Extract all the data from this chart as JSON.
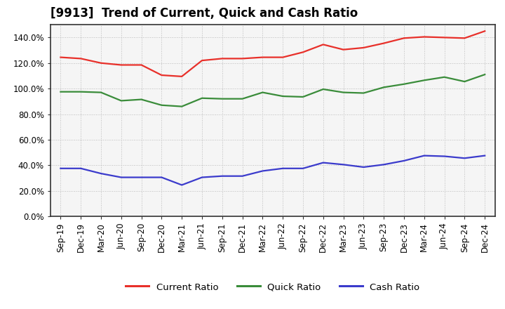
{
  "title": "[9913]  Trend of Current, Quick and Cash Ratio",
  "x_labels": [
    "Sep-19",
    "Dec-19",
    "Mar-20",
    "Jun-20",
    "Sep-20",
    "Dec-20",
    "Mar-21",
    "Jun-21",
    "Sep-21",
    "Dec-21",
    "Mar-22",
    "Jun-22",
    "Sep-22",
    "Dec-22",
    "Mar-23",
    "Jun-23",
    "Sep-23",
    "Dec-23",
    "Mar-24",
    "Jun-24",
    "Sep-24",
    "Dec-24"
  ],
  "current_ratio": [
    124.5,
    123.5,
    120.0,
    118.5,
    118.5,
    110.5,
    109.5,
    122.0,
    123.5,
    123.5,
    124.5,
    124.5,
    128.5,
    134.5,
    130.5,
    132.0,
    135.5,
    139.5,
    140.5,
    140.0,
    139.5,
    145.0
  ],
  "quick_ratio": [
    97.5,
    97.5,
    97.0,
    90.5,
    91.5,
    87.0,
    86.0,
    92.5,
    92.0,
    92.0,
    97.0,
    94.0,
    93.5,
    99.5,
    97.0,
    96.5,
    101.0,
    103.5,
    106.5,
    109.0,
    105.5,
    111.0
  ],
  "cash_ratio": [
    37.5,
    37.5,
    33.5,
    30.5,
    30.5,
    30.5,
    24.5,
    30.5,
    31.5,
    31.5,
    35.5,
    37.5,
    37.5,
    42.0,
    40.5,
    38.5,
    40.5,
    43.5,
    47.5,
    47.0,
    45.5,
    47.5
  ],
  "current_color": "#e8302a",
  "quick_color": "#3a8c3a",
  "cash_color": "#3b3bcc",
  "ylim": [
    0,
    150
  ],
  "yticks": [
    0,
    20,
    40,
    60,
    80,
    100,
    120,
    140
  ],
  "plot_bg_color": "#f5f5f5",
  "fig_bg_color": "#ffffff",
  "grid_color": "#bbbbbb",
  "frame_color": "#333333",
  "legend_labels": [
    "Current Ratio",
    "Quick Ratio",
    "Cash Ratio"
  ],
  "title_fontsize": 12,
  "tick_fontsize": 8.5,
  "legend_fontsize": 9.5
}
